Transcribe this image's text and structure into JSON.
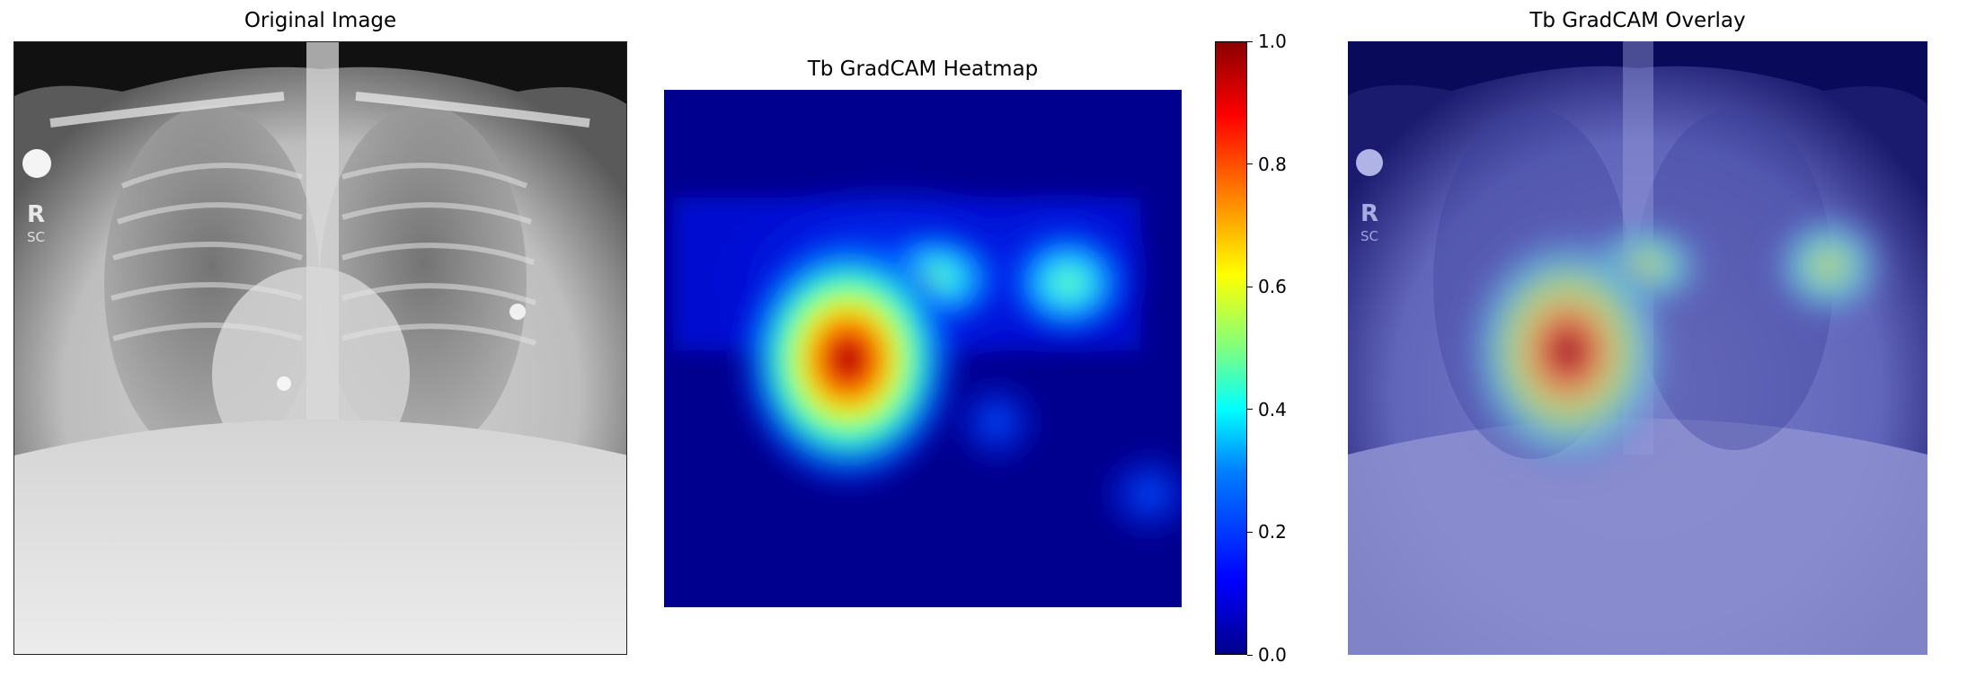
{
  "panels": {
    "original": {
      "title": "Original Image"
    },
    "heatmap": {
      "title": "Tb GradCAM Heatmap"
    },
    "overlay": {
      "title": "Tb GradCAM Overlay"
    }
  },
  "colorbar": {
    "colormap": "jet",
    "range": [
      0.0,
      1.0
    ],
    "ticks": [
      "0.0",
      "0.2",
      "0.4",
      "0.6",
      "0.8",
      "1.0"
    ]
  },
  "colors": {
    "background": "#ffffff",
    "heat_low": "#00008b",
    "heat_high": "#8b0000"
  }
}
